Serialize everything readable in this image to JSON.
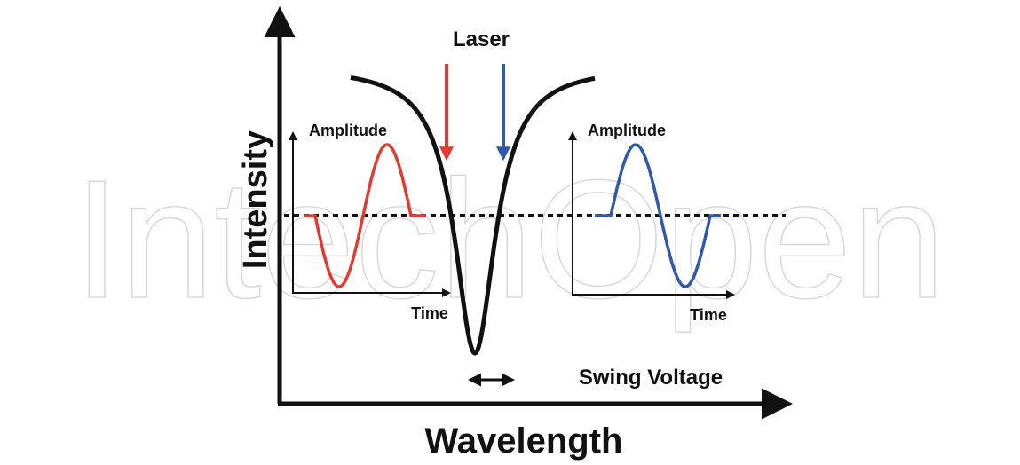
{
  "axes": {
    "y_label": "Intensity",
    "x_label": "Wavelength"
  },
  "laser_label": "Laser",
  "insets": [
    {
      "y_label": "Amplitude",
      "x_label": "Time"
    },
    {
      "y_label": "Amplitude",
      "x_label": "Time"
    }
  ],
  "swing_label": "Swing Voltage",
  "watermark": "IntechOpen"
}
